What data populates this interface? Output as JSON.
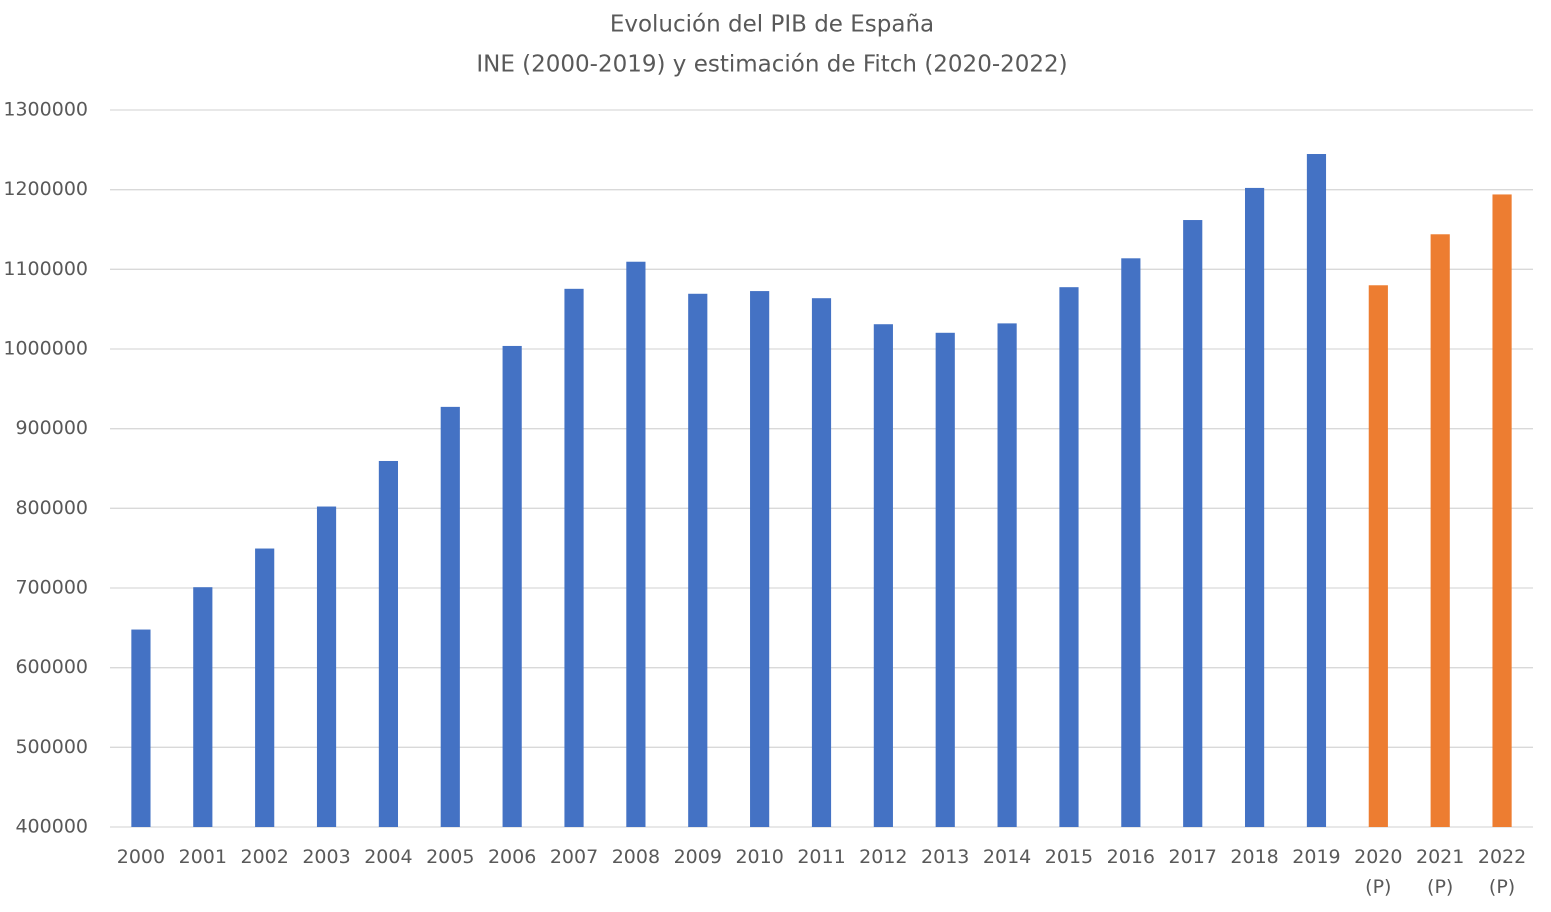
{
  "chart_data": {
    "type": "bar",
    "title": "Evolución del PIB de España",
    "subtitle": "INE (2000-2019) y estimación de Fitch (2020-2022)",
    "categories": [
      "2000",
      "2001",
      "2002",
      "2003",
      "2004",
      "2005",
      "2006",
      "2007",
      "2008",
      "2009",
      "2010",
      "2011",
      "2012",
      "2013",
      "2014",
      "2015",
      "2016",
      "2017",
      "2018",
      "2019",
      "2020 (P)",
      "2021 (P)",
      "2022 (P)"
    ],
    "values": [
      647851,
      700993,
      749552,
      802266,
      859437,
      927357,
      1003823,
      1075539,
      1109541,
      1069323,
      1072709,
      1063763,
      1031104,
      1020348,
      1032158,
      1077590,
      1113840,
      1161878,
      1202193,
      1244757,
      1080000,
      1144000,
      1194000
    ],
    "colors": [
      "#4472c4",
      "#4472c4",
      "#4472c4",
      "#4472c4",
      "#4472c4",
      "#4472c4",
      "#4472c4",
      "#4472c4",
      "#4472c4",
      "#4472c4",
      "#4472c4",
      "#4472c4",
      "#4472c4",
      "#4472c4",
      "#4472c4",
      "#4472c4",
      "#4472c4",
      "#4472c4",
      "#4472c4",
      "#4472c4",
      "#ed7d31",
      "#ed7d31",
      "#ed7d31"
    ],
    "ylim": [
      400000,
      1300000
    ],
    "yticks": [
      400000,
      500000,
      600000,
      700000,
      800000,
      900000,
      1000000,
      1100000,
      1200000,
      1300000
    ],
    "grid": true
  }
}
